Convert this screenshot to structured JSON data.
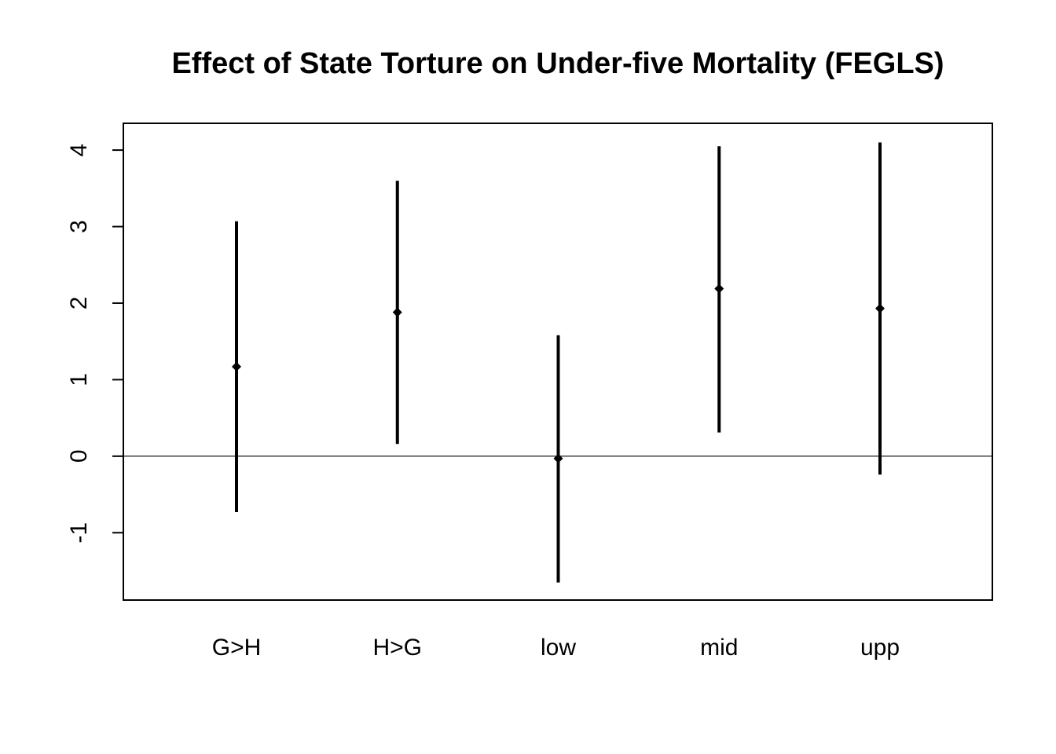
{
  "chart_data": {
    "type": "scatter",
    "title": "Effect of State Torture on Under-five Mortality (FEGLS)",
    "xlabel": "",
    "ylabel": "",
    "categories": [
      "G>H",
      "H>G",
      "low",
      "mid",
      "upp"
    ],
    "estimates": [
      1.17,
      1.88,
      -0.03,
      2.19,
      1.93
    ],
    "ci_lower": [
      -0.73,
      0.16,
      -1.65,
      0.31,
      -0.24
    ],
    "ci_upper": [
      3.07,
      3.6,
      1.58,
      4.05,
      4.1
    ],
    "reference_line": 0,
    "yticks": [
      -1,
      0,
      1,
      2,
      3,
      4
    ],
    "ylim": [
      -1.88,
      4.35
    ],
    "grid": false,
    "legend": "none",
    "colors": {
      "marks": "#000000",
      "frame": "#000000",
      "background": "#ffffff"
    }
  }
}
